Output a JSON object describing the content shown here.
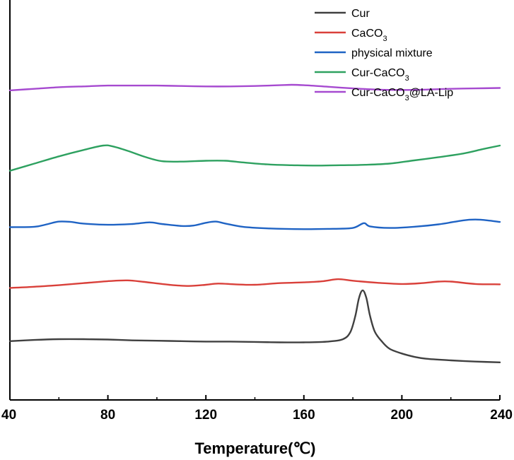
{
  "chart_data": {
    "type": "line",
    "title": "",
    "xlabel": "Temperature(℃)",
    "ylabel": "",
    "xlim": [
      40,
      240
    ],
    "ylim": [
      0,
      100
    ],
    "x_ticks": [
      "40",
      "80",
      "120",
      "160",
      "200",
      "240"
    ],
    "y_ticks": [],
    "legend_position": "top-right",
    "grid": false,
    "series": [
      {
        "name": "Cur",
        "label_parts": [
          {
            "t": "Cur",
            "sub": false
          }
        ],
        "color": "#404040",
        "points": [
          [
            40,
            14.7
          ],
          [
            50,
            15
          ],
          [
            60,
            15.2
          ],
          [
            70,
            15.2
          ],
          [
            80,
            15.1
          ],
          [
            90,
            14.9
          ],
          [
            100,
            14.8
          ],
          [
            110,
            14.7
          ],
          [
            120,
            14.6
          ],
          [
            130,
            14.6
          ],
          [
            140,
            14.5
          ],
          [
            150,
            14.4
          ],
          [
            160,
            14.4
          ],
          [
            170,
            14.6
          ],
          [
            176,
            15.2
          ],
          [
            179,
            17
          ],
          [
            181,
            21
          ],
          [
            182.5,
            25.5
          ],
          [
            184,
            27.4
          ],
          [
            185.5,
            25.5
          ],
          [
            187,
            21
          ],
          [
            189,
            17
          ],
          [
            192,
            14.5
          ],
          [
            195,
            12.8
          ],
          [
            200,
            11.6
          ],
          [
            205,
            10.8
          ],
          [
            210,
            10.3
          ],
          [
            220,
            9.9
          ],
          [
            230,
            9.6
          ],
          [
            240,
            9.4
          ]
        ]
      },
      {
        "name": "CaCO3",
        "label_parts": [
          {
            "t": "CaCO",
            "sub": false
          },
          {
            "t": "3",
            "sub": true
          }
        ],
        "color": "#d9403a",
        "points": [
          [
            40,
            28
          ],
          [
            50,
            28.3
          ],
          [
            60,
            28.7
          ],
          [
            70,
            29.2
          ],
          [
            80,
            29.7
          ],
          [
            88,
            29.9
          ],
          [
            95,
            29.5
          ],
          [
            105,
            28.8
          ],
          [
            113,
            28.5
          ],
          [
            120,
            28.8
          ],
          [
            125,
            29.1
          ],
          [
            132,
            28.9
          ],
          [
            140,
            28.8
          ],
          [
            150,
            29.2
          ],
          [
            160,
            29.4
          ],
          [
            168,
            29.7
          ],
          [
            174,
            30.2
          ],
          [
            180,
            29.8
          ],
          [
            190,
            29.3
          ],
          [
            200,
            29
          ],
          [
            208,
            29.2
          ],
          [
            215,
            29.6
          ],
          [
            220,
            29.6
          ],
          [
            230,
            29
          ],
          [
            240,
            28.9
          ]
        ]
      },
      {
        "name": "physical mixture",
        "label_parts": [
          {
            "t": "physical mixture",
            "sub": false
          }
        ],
        "color": "#1f63c4",
        "points": [
          [
            40,
            43.2
          ],
          [
            50,
            43.3
          ],
          [
            55,
            43.9
          ],
          [
            60,
            44.6
          ],
          [
            65,
            44.5
          ],
          [
            70,
            44.1
          ],
          [
            80,
            43.8
          ],
          [
            90,
            44
          ],
          [
            97,
            44.4
          ],
          [
            102,
            44
          ],
          [
            110,
            43.5
          ],
          [
            115,
            43.6
          ],
          [
            120,
            44.3
          ],
          [
            124,
            44.6
          ],
          [
            128,
            44.1
          ],
          [
            135,
            43.3
          ],
          [
            145,
            42.9
          ],
          [
            160,
            42.7
          ],
          [
            172,
            42.8
          ],
          [
            180,
            43
          ],
          [
            184.5,
            44.2
          ],
          [
            187,
            43.4
          ],
          [
            195,
            43
          ],
          [
            205,
            43.3
          ],
          [
            215,
            43.9
          ],
          [
            225,
            44.9
          ],
          [
            230,
            45.1
          ],
          [
            235,
            44.9
          ],
          [
            240,
            44.5
          ]
        ]
      },
      {
        "name": "Cur-CaCO3",
        "label_parts": [
          {
            "t": "Cur-CaCO",
            "sub": false
          },
          {
            "t": "3",
            "sub": true
          }
        ],
        "color": "#2ea160",
        "points": [
          [
            40,
            57.3
          ],
          [
            50,
            59.1
          ],
          [
            60,
            60.9
          ],
          [
            70,
            62.5
          ],
          [
            78,
            63.6
          ],
          [
            82,
            63.4
          ],
          [
            88,
            62.3
          ],
          [
            95,
            60.8
          ],
          [
            102,
            59.7
          ],
          [
            110,
            59.6
          ],
          [
            120,
            59.8
          ],
          [
            128,
            59.8
          ],
          [
            135,
            59.4
          ],
          [
            145,
            58.9
          ],
          [
            155,
            58.7
          ],
          [
            165,
            58.6
          ],
          [
            175,
            58.7
          ],
          [
            185,
            58.8
          ],
          [
            195,
            59.1
          ],
          [
            205,
            59.9
          ],
          [
            215,
            60.7
          ],
          [
            225,
            61.6
          ],
          [
            233,
            62.7
          ],
          [
            240,
            63.6
          ]
        ]
      },
      {
        "name": "Cur-CaCO3@LA-Lip",
        "label_parts": [
          {
            "t": "Cur-CaCO",
            "sub": false
          },
          {
            "t": "3",
            "sub": true
          },
          {
            "t": "@LA-Lip",
            "sub": false
          }
        ],
        "color": "#a64ad0",
        "points": [
          [
            40,
            77.4
          ],
          [
            50,
            77.8
          ],
          [
            60,
            78.2
          ],
          [
            70,
            78.4
          ],
          [
            80,
            78.6
          ],
          [
            90,
            78.6
          ],
          [
            100,
            78.6
          ],
          [
            110,
            78.5
          ],
          [
            120,
            78.4
          ],
          [
            130,
            78.4
          ],
          [
            140,
            78.5
          ],
          [
            150,
            78.7
          ],
          [
            155,
            78.8
          ],
          [
            160,
            78.7
          ],
          [
            170,
            78.3
          ],
          [
            180,
            77.9
          ],
          [
            190,
            77.6
          ],
          [
            200,
            77.5
          ],
          [
            210,
            77.6
          ],
          [
            220,
            77.8
          ],
          [
            230,
            77.9
          ],
          [
            240,
            78
          ]
        ]
      }
    ]
  }
}
